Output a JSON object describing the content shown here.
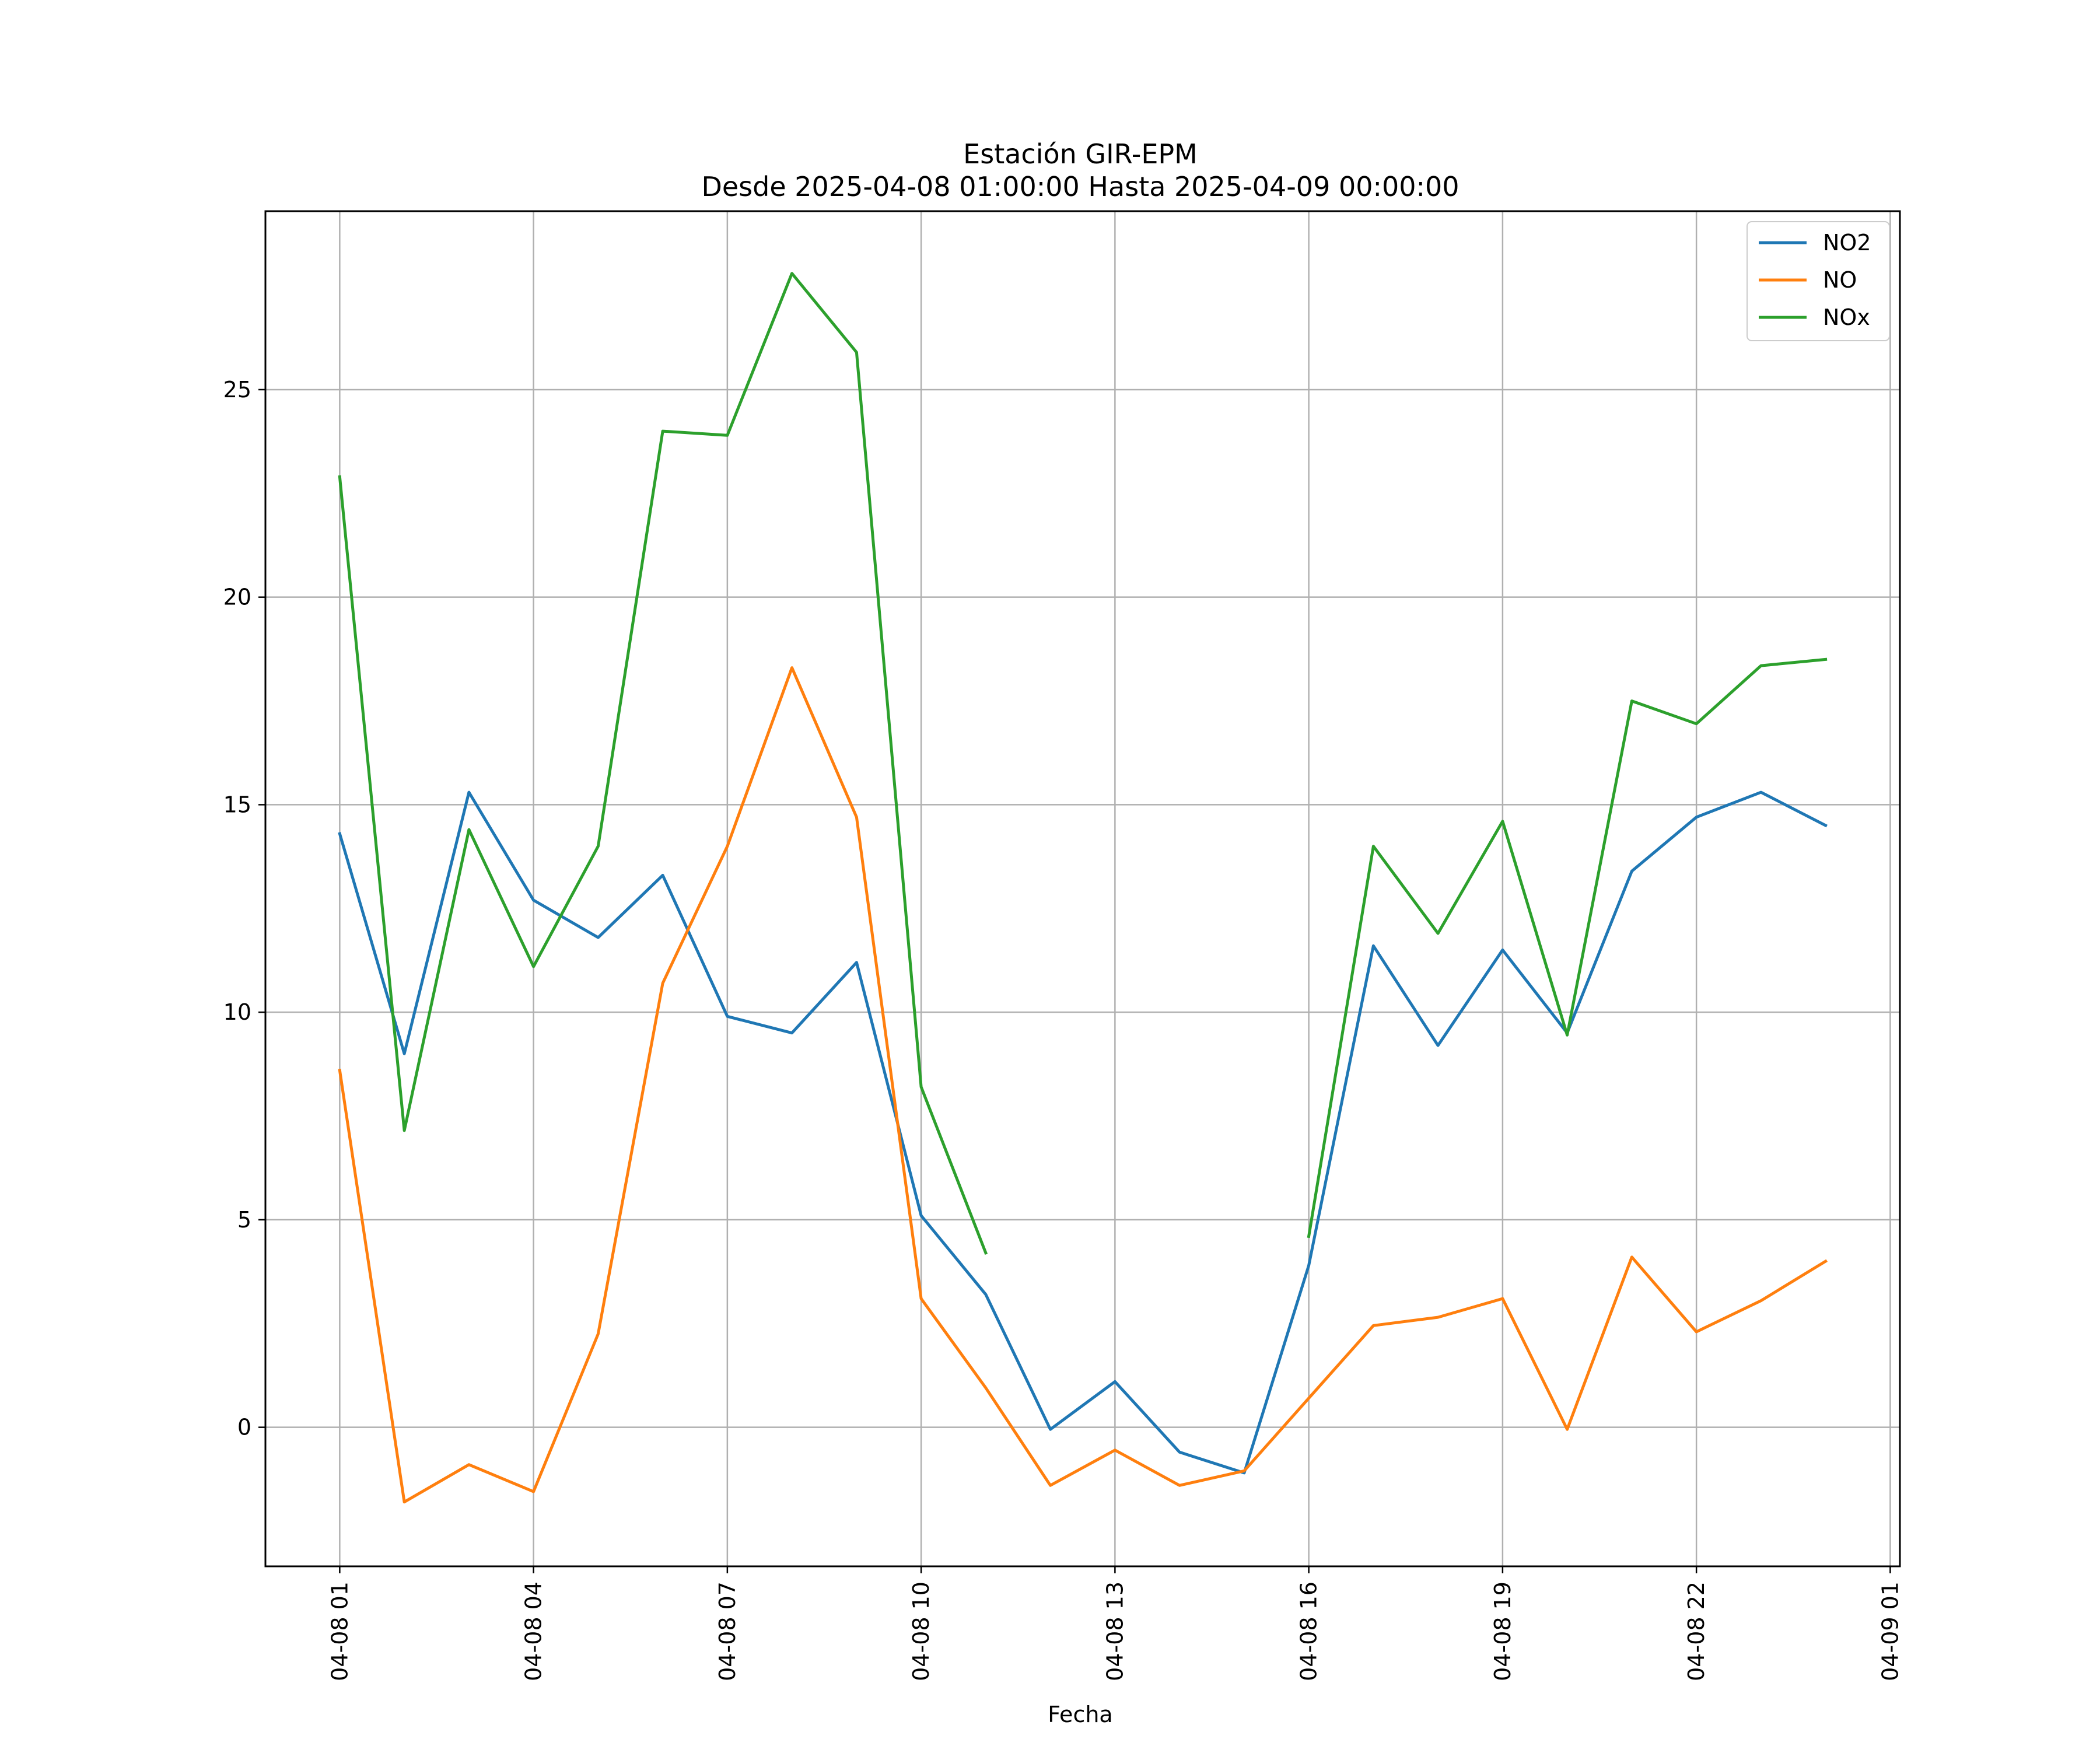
{
  "chart_data": {
    "type": "line",
    "title": "Estación GIR-EPM",
    "subtitle": "Desde 2025-04-08 01:00:00 Hasta 2025-04-09 00:00:00",
    "xlabel": "Fecha",
    "ylabel": "",
    "x": [
      "2025-04-08 01:00",
      "2025-04-08 02:00",
      "2025-04-08 03:00",
      "2025-04-08 04:00",
      "2025-04-08 05:00",
      "2025-04-08 06:00",
      "2025-04-08 07:00",
      "2025-04-08 08:00",
      "2025-04-08 09:00",
      "2025-04-08 10:00",
      "2025-04-08 11:00",
      "2025-04-08 12:00",
      "2025-04-08 13:00",
      "2025-04-08 14:00",
      "2025-04-08 15:00",
      "2025-04-08 16:00",
      "2025-04-08 17:00",
      "2025-04-08 18:00",
      "2025-04-08 19:00",
      "2025-04-08 20:00",
      "2025-04-08 21:00",
      "2025-04-08 22:00",
      "2025-04-08 23:00",
      "2025-04-09 00:00"
    ],
    "series": [
      {
        "name": "NO2",
        "color": "#1f77b4",
        "values": [
          14.3,
          9.0,
          15.3,
          12.7,
          11.8,
          13.3,
          9.9,
          9.5,
          11.2,
          5.1,
          3.2,
          -0.05,
          1.1,
          -0.6,
          -1.1,
          3.9,
          11.6,
          9.2,
          11.5,
          9.5,
          13.4,
          14.7,
          15.3,
          14.5
        ]
      },
      {
        "name": "NO",
        "color": "#ff7f0e",
        "values": [
          8.6,
          -1.8,
          -0.9,
          -1.55,
          2.25,
          10.7,
          14.0,
          18.3,
          14.7,
          3.1,
          0.95,
          -1.4,
          -0.55,
          -1.4,
          -1.05,
          0.7,
          2.45,
          2.65,
          3.1,
          -0.05,
          4.1,
          2.3,
          3.05,
          4.0
        ]
      },
      {
        "name": "NOx",
        "color": "#2ca02c",
        "values": [
          22.9,
          7.15,
          14.4,
          11.1,
          14.0,
          24.0,
          23.9,
          27.8,
          25.9,
          8.2,
          4.2,
          null,
          null,
          null,
          null,
          4.6,
          14.0,
          11.9,
          14.6,
          9.45,
          17.5,
          16.95,
          18.35,
          18.5
        ]
      }
    ],
    "x_ticks": [
      "04-08 01",
      "04-08 04",
      "04-08 07",
      "04-08 10",
      "04-08 13",
      "04-08 16",
      "04-08 19",
      "04-08 22",
      "04-09 01"
    ],
    "x_tick_hours": [
      0,
      3,
      6,
      9,
      12,
      15,
      18,
      21,
      24
    ],
    "xlim_hours": [
      -1.15,
      24.15
    ],
    "y_ticks": [
      0,
      5,
      10,
      15,
      20,
      25
    ],
    "ylim": [
      -3.35,
      29.3
    ],
    "grid": true,
    "legend_position": "upper right"
  }
}
